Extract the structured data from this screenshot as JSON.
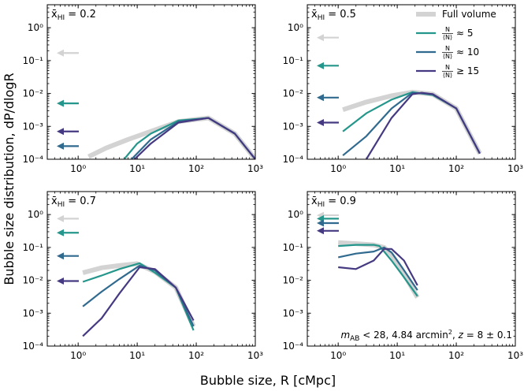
{
  "figure": {
    "xlabel": "Bubble size, R [cMpc]",
    "ylabel": "Bubble size distribution, dP/dlogR",
    "annotation": "m_AB < 28, 4.84 arcmin², z = 8 ± 0.1"
  },
  "legend": {
    "placement": "top-right of top-right panel",
    "entries": [
      {
        "key": "full",
        "label": "Full volume",
        "color": "#d3d3d3"
      },
      {
        "key": "n5",
        "label": "N/⟨N⟩ ≈ 5",
        "color": "#25968b"
      },
      {
        "key": "n10",
        "label": "N/⟨N⟩ ≈ 10",
        "color": "#306a8e"
      },
      {
        "key": "n15",
        "label": "N/⟨N⟩ ≥ 15",
        "color": "#453a82"
      }
    ]
  },
  "colors": {
    "full": "#d3d3d3",
    "n5": "#25968b",
    "n10": "#306a8e",
    "n15": "#453a82"
  },
  "chart_data": [
    {
      "type": "line",
      "panel_label": "x̄_HI = 0.2",
      "x_scale": "log",
      "y_scale": "log",
      "xlim": [
        0.3,
        1000
      ],
      "ylim": [
        0.0001,
        5
      ],
      "x_ticks": [
        "10^0",
        "10^1",
        "10^2",
        "10^3"
      ],
      "y_ticks": [
        "10^-4",
        "10^-3",
        "10^-2",
        "10^-1",
        "10^0"
      ],
      "series": [
        {
          "key": "full",
          "x": [
            1.5,
            3,
            7,
            17,
            50,
            160,
            450,
            1000
          ],
          "y": [
            0.00012,
            0.00022,
            0.0004,
            0.0007,
            0.0014,
            0.0018,
            0.0006,
            0.0001
          ]
        },
        {
          "key": "n5",
          "x": [
            6,
            10,
            17,
            50,
            160,
            450,
            1000
          ],
          "y": [
            0.0001,
            0.0003,
            0.0006,
            0.0015,
            0.0018,
            0.0006,
            0.0001
          ]
        },
        {
          "key": "n10",
          "x": [
            8,
            17,
            50,
            160,
            450,
            1000
          ],
          "y": [
            0.0001,
            0.0004,
            0.0014,
            0.0018,
            0.0006,
            0.0001
          ]
        },
        {
          "key": "n15",
          "x": [
            9,
            17,
            50,
            160,
            450,
            1000
          ],
          "y": [
            0.0001,
            0.0003,
            0.0013,
            0.0018,
            0.0006,
            0.0001
          ]
        }
      ],
      "arrows": [
        {
          "key": "full",
          "y": 0.17
        },
        {
          "key": "n5",
          "y": 0.005
        },
        {
          "key": "n15",
          "y": 0.0007
        },
        {
          "key": "n10",
          "y": 0.00025
        }
      ]
    },
    {
      "type": "line",
      "panel_label": "x̄_HI = 0.5",
      "x_scale": "log",
      "y_scale": "log",
      "xlim": [
        0.3,
        1000
      ],
      "ylim": [
        0.0001,
        5
      ],
      "x_ticks": [
        "10^0",
        "10^1",
        "10^2",
        "10^3"
      ],
      "y_ticks": [
        "10^-4",
        "10^-3",
        "10^-2",
        "10^-1",
        "10^0"
      ],
      "series": [
        {
          "key": "full",
          "x": [
            1.2,
            3,
            8,
            18,
            40,
            100,
            250
          ],
          "y": [
            0.0032,
            0.0055,
            0.0085,
            0.011,
            0.0095,
            0.0035,
            0.00015
          ]
        },
        {
          "key": "n5",
          "x": [
            1.2,
            3,
            8,
            18,
            40,
            100,
            250
          ],
          "y": [
            0.0007,
            0.0025,
            0.0065,
            0.011,
            0.009,
            0.0035,
            0.00015
          ]
        },
        {
          "key": "n10",
          "x": [
            1.2,
            3,
            8,
            18,
            40,
            100,
            250
          ],
          "y": [
            0.00013,
            0.0005,
            0.0035,
            0.0105,
            0.0095,
            0.0035,
            0.00015
          ]
        },
        {
          "key": "n15",
          "x": [
            3,
            8,
            18,
            26,
            40,
            100,
            250
          ],
          "y": [
            0.0001,
            0.0018,
            0.0095,
            0.0105,
            0.0095,
            0.0035,
            0.00015
          ]
        }
      ],
      "arrows": [
        {
          "key": "full",
          "y": 0.5
        },
        {
          "key": "n5",
          "y": 0.07
        },
        {
          "key": "n10",
          "y": 0.0075
        },
        {
          "key": "n15",
          "y": 0.0013
        }
      ]
    },
    {
      "type": "line",
      "panel_label": "x̄_HI = 0.7",
      "x_scale": "log",
      "y_scale": "log",
      "xlim": [
        0.3,
        1000
      ],
      "ylim": [
        0.0001,
        5
      ],
      "x_ticks": [
        "10^0",
        "10^1",
        "10^2",
        "10^3"
      ],
      "y_ticks": [
        "10^-4",
        "10^-3",
        "10^-2",
        "10^-1",
        "10^0"
      ],
      "series": [
        {
          "key": "full",
          "x": [
            1.2,
            2.5,
            5,
            10,
            20,
            45,
            90
          ],
          "y": [
            0.017,
            0.024,
            0.028,
            0.032,
            0.018,
            0.006,
            0.0004
          ]
        },
        {
          "key": "n5",
          "x": [
            1.2,
            2.5,
            5,
            11,
            20,
            45,
            90
          ],
          "y": [
            0.009,
            0.014,
            0.022,
            0.033,
            0.017,
            0.006,
            0.0003
          ]
        },
        {
          "key": "n10",
          "x": [
            1.2,
            2.5,
            5,
            11,
            20,
            45,
            90
          ],
          "y": [
            0.0016,
            0.0045,
            0.011,
            0.028,
            0.02,
            0.006,
            0.0004
          ]
        },
        {
          "key": "n15",
          "x": [
            1.2,
            2.5,
            5,
            11,
            20,
            45,
            90
          ],
          "y": [
            0.0002,
            0.0007,
            0.004,
            0.025,
            0.022,
            0.006,
            0.0006
          ]
        }
      ],
      "arrows": [
        {
          "key": "full",
          "y": 0.75
        },
        {
          "key": "n5",
          "y": 0.28
        },
        {
          "key": "n10",
          "y": 0.055
        },
        {
          "key": "n15",
          "y": 0.0095
        }
      ]
    },
    {
      "type": "line",
      "panel_label": "x̄_HI = 0.9",
      "x_scale": "log",
      "y_scale": "log",
      "xlim": [
        0.3,
        1000
      ],
      "ylim": [
        0.0001,
        5
      ],
      "x_ticks": [
        "10^0",
        "10^1",
        "10^2",
        "10^3"
      ],
      "y_ticks": [
        "10^-4",
        "10^-3",
        "10^-2",
        "10^-1",
        "10^0"
      ],
      "series": [
        {
          "key": "full",
          "x": [
            1,
            2,
            4,
            6,
            8,
            12,
            22
          ],
          "y": [
            0.14,
            0.13,
            0.12,
            0.1,
            0.06,
            0.02,
            0.003
          ]
        },
        {
          "key": "n5",
          "x": [
            1,
            2,
            4,
            5,
            8,
            12,
            22
          ],
          "y": [
            0.11,
            0.12,
            0.12,
            0.11,
            0.04,
            0.015,
            0.0033
          ]
        },
        {
          "key": "n10",
          "x": [
            1,
            2,
            4,
            6,
            8,
            12,
            22
          ],
          "y": [
            0.05,
            0.065,
            0.075,
            0.1,
            0.07,
            0.025,
            0.005
          ]
        },
        {
          "key": "n15",
          "x": [
            1,
            2,
            4,
            6,
            8,
            13,
            22
          ],
          "y": [
            0.025,
            0.022,
            0.04,
            0.09,
            0.09,
            0.04,
            0.007
          ]
        }
      ],
      "arrows": [
        {
          "key": "full",
          "y": 0.95
        },
        {
          "key": "n5",
          "y": 0.75
        },
        {
          "key": "n10",
          "y": 0.55
        },
        {
          "key": "n15",
          "y": 0.32
        }
      ]
    }
  ]
}
